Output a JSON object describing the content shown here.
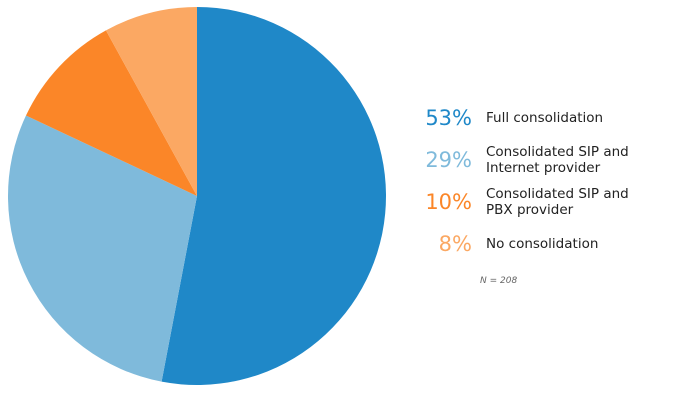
{
  "chart_data": {
    "type": "pie",
    "slices": [
      {
        "label": "Full consolidation",
        "value": 53,
        "display": "53%",
        "color": "#1f88c8"
      },
      {
        "label": "Consolidated SIP and Internet provider",
        "value": 29,
        "display": "29%",
        "color": "#7fbadb"
      },
      {
        "label": "Consolidated SIP and PBX provider",
        "value": 10,
        "display": "10%",
        "color": "#fb8628"
      },
      {
        "label": "No consolidation",
        "value": 8,
        "display": "8%",
        "color": "#fba863"
      }
    ],
    "legend_placement": "right",
    "note": "N = 208"
  }
}
